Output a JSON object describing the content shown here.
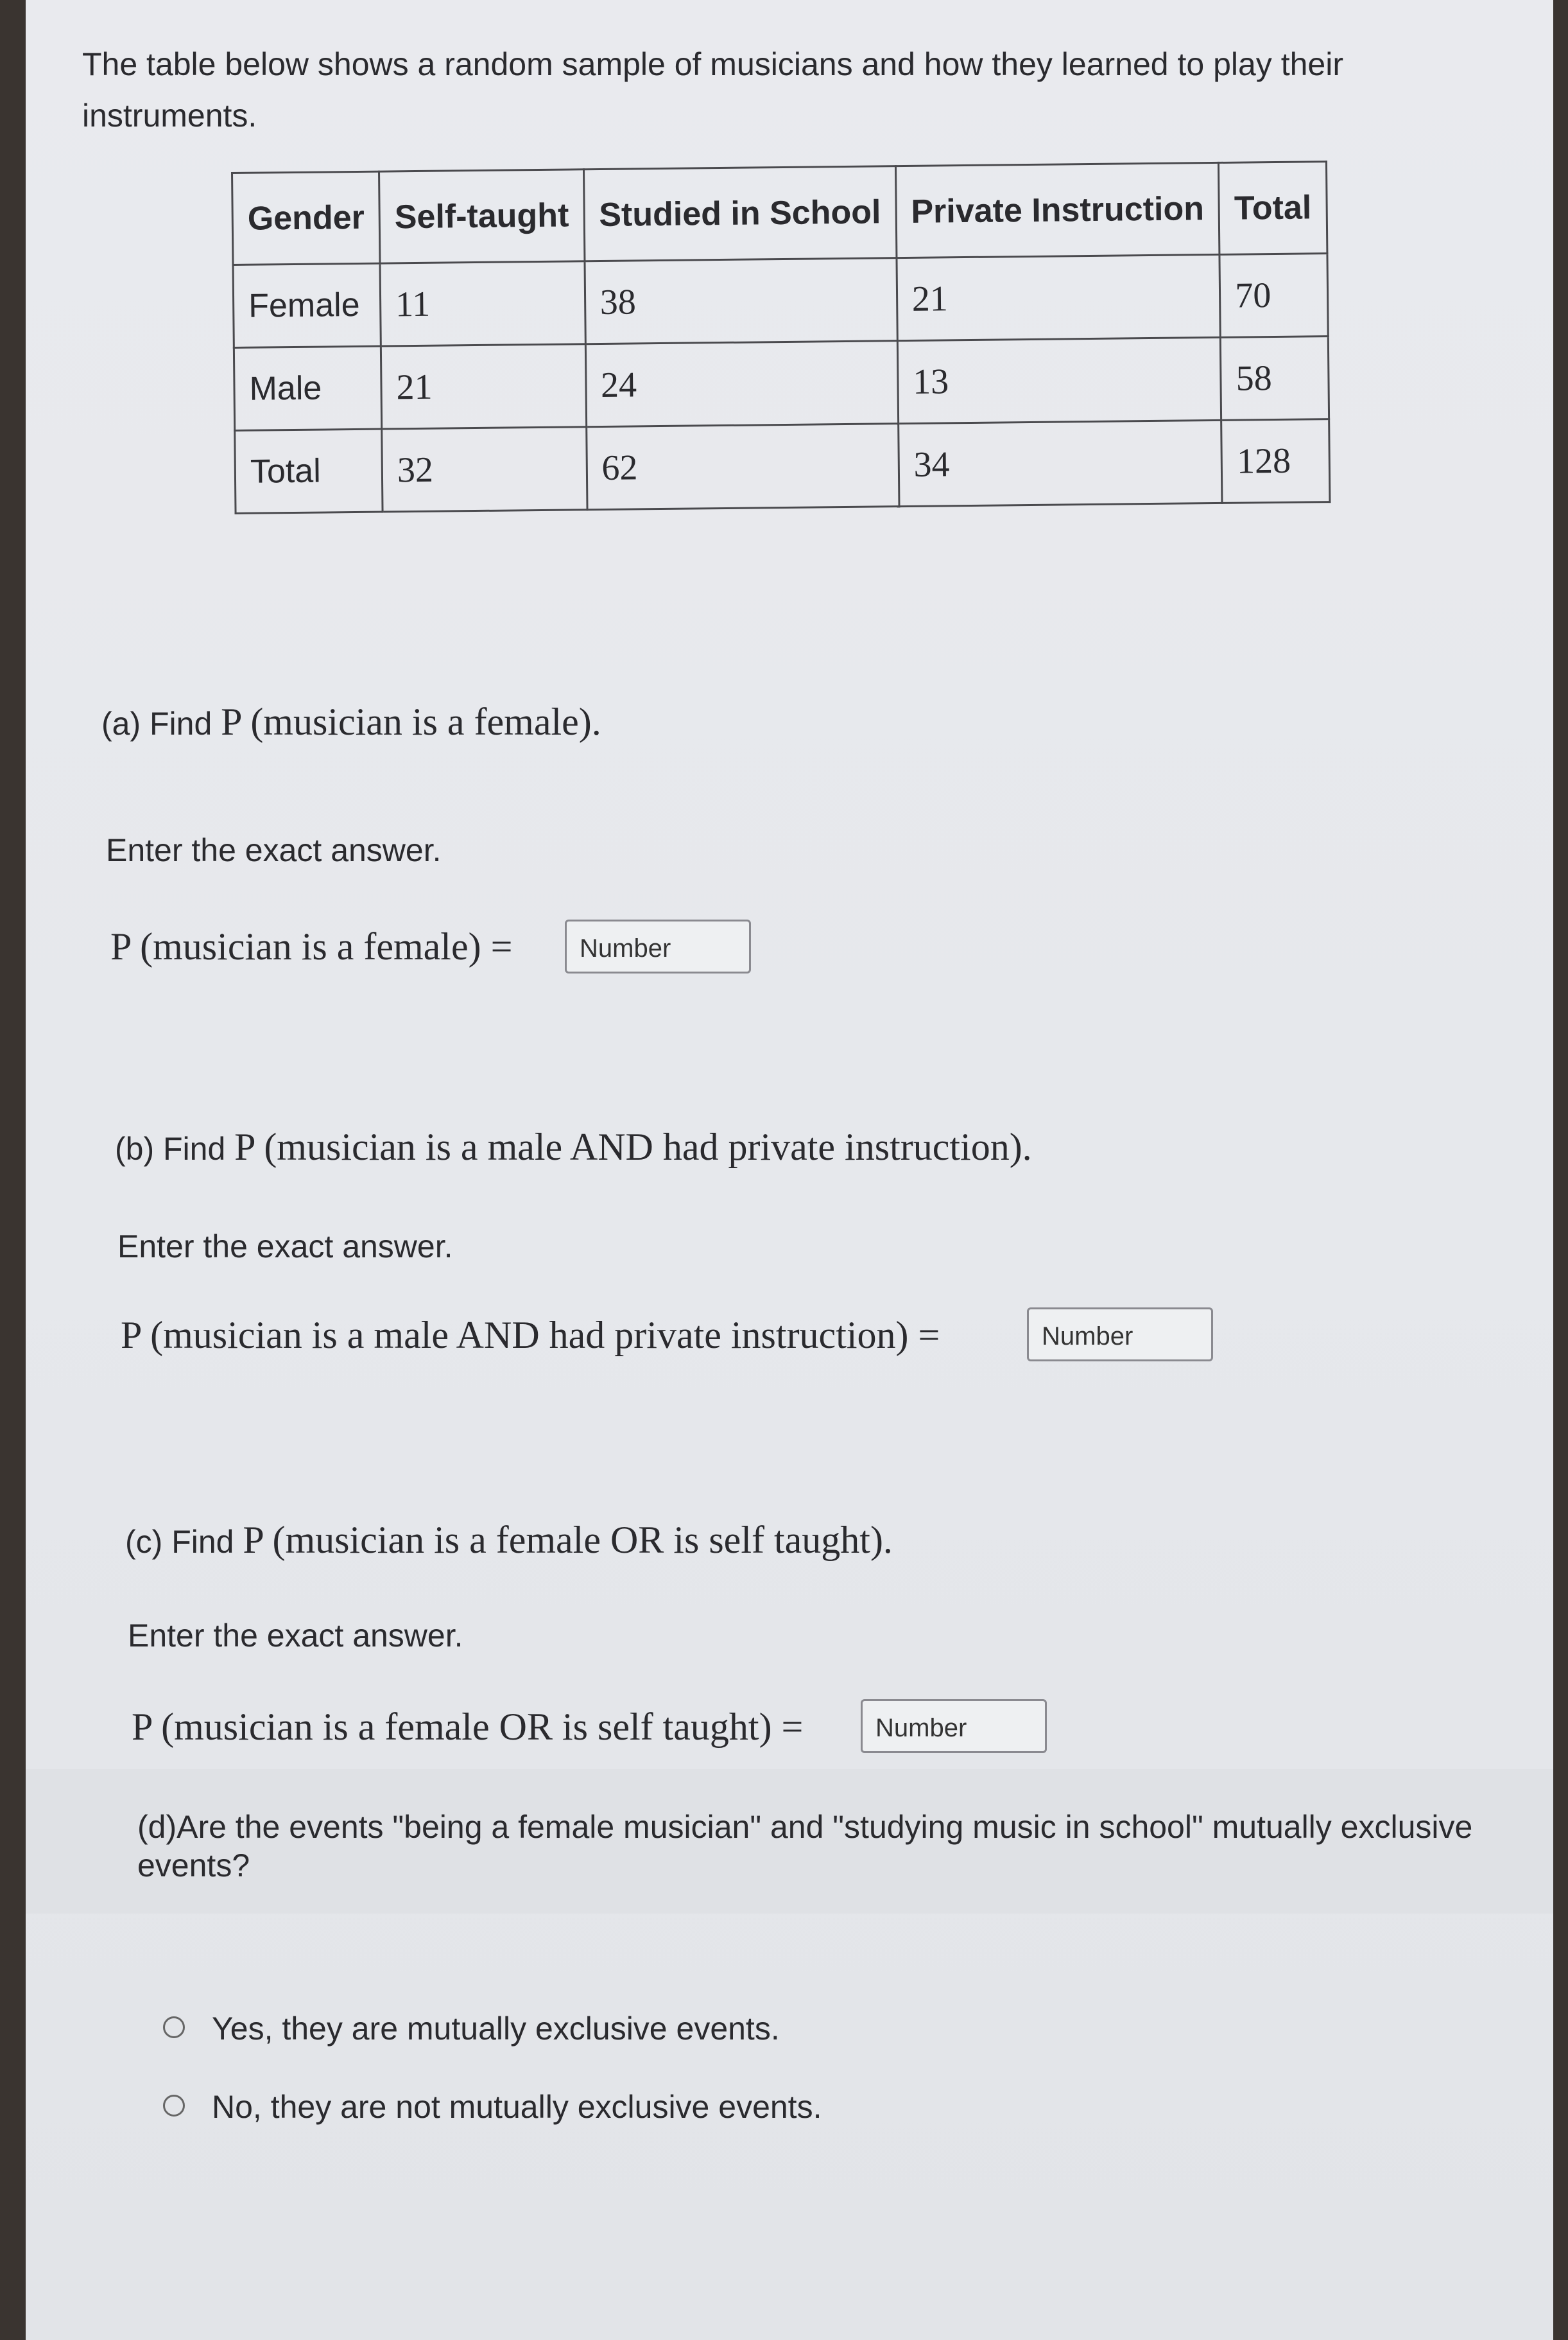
{
  "intro": "The table below shows a random sample of musicians and how they learned to play their instruments.",
  "table": {
    "headers": [
      "Gender",
      "Self-taught",
      "Studied in School",
      "Private Instruction",
      "Total"
    ],
    "rows": [
      [
        "Female",
        "11",
        "38",
        "21",
        "70"
      ],
      [
        "Male",
        "21",
        "24",
        "13",
        "58"
      ],
      [
        "Total",
        "32",
        "62",
        "34",
        "128"
      ]
    ]
  },
  "parts": {
    "a": {
      "prefix": "(a) Find ",
      "question": "P (musician is a female).",
      "instruction": "Enter the exact answer.",
      "equation": "P (musician is a female) =",
      "placeholder": "Number"
    },
    "b": {
      "prefix": "(b) Find ",
      "question": "P (musician is a male AND had private instruction).",
      "instruction": "Enter the exact answer.",
      "equation": "P (musician is a male AND had private instruction) =",
      "placeholder": "Number"
    },
    "c": {
      "prefix": "(c) Find ",
      "question": "P (musician is a female OR is self taught).",
      "instruction": "Enter the exact answer.",
      "equation": "P (musician is a female OR is self taught) =",
      "placeholder": "Number"
    },
    "d": {
      "question": "(d)Are the events \"being a female musician\" and \"studying music in school\" mutually exclusive events?",
      "options": [
        "Yes, they are mutually exclusive events.",
        "No, they are not mutually exclusive events."
      ]
    }
  }
}
